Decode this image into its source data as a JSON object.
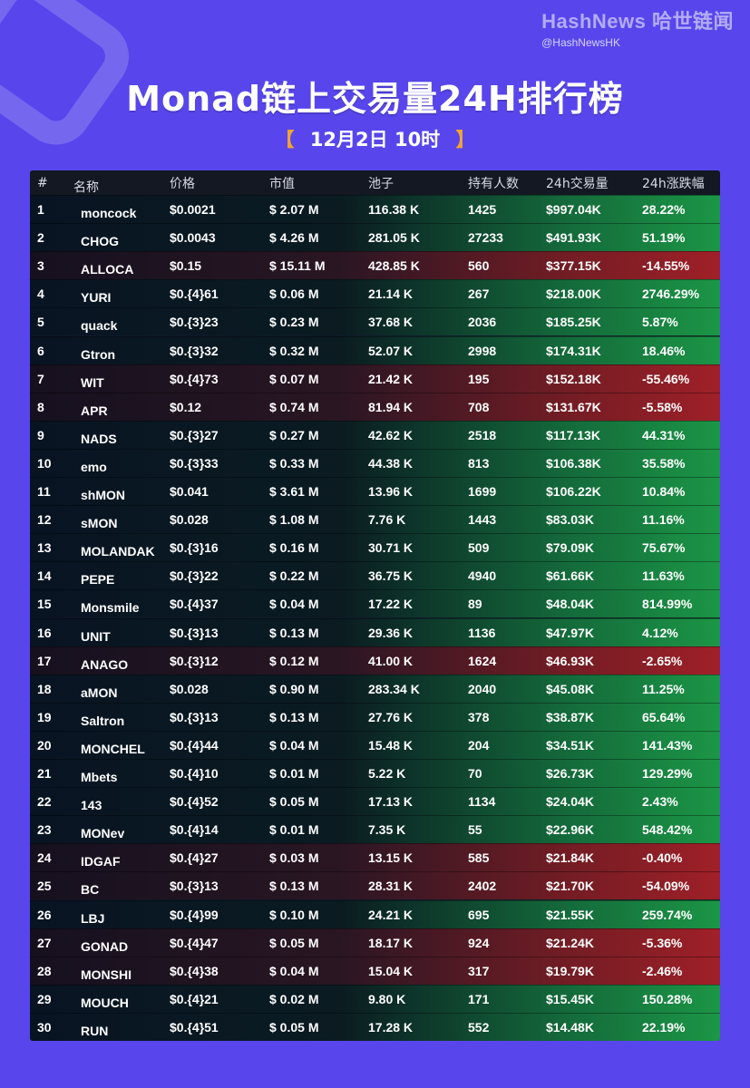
{
  "brand": {
    "name": "HashNews 哈世链闻",
    "handle": "@HashNewsHK"
  },
  "title": "Monad链上交易量24H排行榜",
  "subtitle": {
    "open": "【",
    "text": "12月2日  10时",
    "close": "】"
  },
  "colors": {
    "background": "#5846ec",
    "up_row": "#1c9646",
    "down_row": "#a02028",
    "title_bracket": "#f2a531"
  },
  "table": {
    "headers": {
      "rank": "#",
      "name": "名称",
      "price": "价格",
      "mcap": "市值",
      "pool": "池子",
      "holders": "持有人数",
      "volume": "24h交易量",
      "change": "24h涨跌幅"
    },
    "rows": [
      {
        "rank": "1",
        "name": "moncock",
        "price": "$0.0021",
        "mcap": "$ 2.07 M",
        "pool": "116.38 K",
        "holders": "1425",
        "volume": "$997.04K",
        "change": "28.22%",
        "trend": "up"
      },
      {
        "rank": "2",
        "name": "CHOG",
        "price": "$0.0043",
        "mcap": "$ 4.26 M",
        "pool": "281.05 K",
        "holders": "27233",
        "volume": "$491.93K",
        "change": "51.19%",
        "trend": "up"
      },
      {
        "rank": "3",
        "name": "ALLOCA",
        "price": "$0.15",
        "mcap": "$ 15.11 M",
        "pool": "428.85 K",
        "holders": "560",
        "volume": "$377.15K",
        "change": "-14.55%",
        "trend": "down"
      },
      {
        "rank": "4",
        "name": "YURI",
        "price": "$0.{4}61",
        "mcap": "$ 0.06 M",
        "pool": "21.14 K",
        "holders": "267",
        "volume": "$218.00K",
        "change": "2746.29%",
        "trend": "up"
      },
      {
        "rank": "5",
        "name": "quack",
        "price": "$0.{3}23",
        "mcap": "$ 0.23 M",
        "pool": "37.68 K",
        "holders": "2036",
        "volume": "$185.25K",
        "change": "5.87%",
        "trend": "up"
      },
      {
        "rank": "6",
        "name": "Gtron",
        "price": "$0.{3}32",
        "mcap": "$ 0.32 M",
        "pool": "52.07 K",
        "holders": "2998",
        "volume": "$174.31K",
        "change": "18.46%",
        "trend": "up"
      },
      {
        "rank": "7",
        "name": "WIT",
        "price": "$0.{4}73",
        "mcap": "$ 0.07 M",
        "pool": "21.42 K",
        "holders": "195",
        "volume": "$152.18K",
        "change": "-55.46%",
        "trend": "down"
      },
      {
        "rank": "8",
        "name": "APR",
        "price": "$0.12",
        "mcap": "$ 0.74 M",
        "pool": "81.94 K",
        "holders": "708",
        "volume": "$131.67K",
        "change": "-5.58%",
        "trend": "down"
      },
      {
        "rank": "9",
        "name": "NADS",
        "price": "$0.{3}27",
        "mcap": "$ 0.27 M",
        "pool": "42.62 K",
        "holders": "2518",
        "volume": "$117.13K",
        "change": "44.31%",
        "trend": "up"
      },
      {
        "rank": "10",
        "name": "emo",
        "price": "$0.{3}33",
        "mcap": "$ 0.33 M",
        "pool": "44.38 K",
        "holders": "813",
        "volume": "$106.38K",
        "change": "35.58%",
        "trend": "up"
      },
      {
        "rank": "11",
        "name": "shMON",
        "price": "$0.041",
        "mcap": "$ 3.61 M",
        "pool": "13.96 K",
        "holders": "1699",
        "volume": "$106.22K",
        "change": "10.84%",
        "trend": "up"
      },
      {
        "rank": "12",
        "name": "sMON",
        "price": "$0.028",
        "mcap": "$ 1.08 M",
        "pool": "7.76 K",
        "holders": "1443",
        "volume": "$83.03K",
        "change": "11.16%",
        "trend": "up"
      },
      {
        "rank": "13",
        "name": "MOLANDAK",
        "price": "$0.{3}16",
        "mcap": "$ 0.16 M",
        "pool": "30.71 K",
        "holders": "509",
        "volume": "$79.09K",
        "change": "75.67%",
        "trend": "up"
      },
      {
        "rank": "14",
        "name": "PEPE",
        "price": "$0.{3}22",
        "mcap": "$ 0.22 M",
        "pool": "36.75 K",
        "holders": "4940",
        "volume": "$61.66K",
        "change": "11.63%",
        "trend": "up"
      },
      {
        "rank": "15",
        "name": "Monsmile",
        "price": "$0.{4}37",
        "mcap": "$ 0.04 M",
        "pool": "17.22 K",
        "holders": "89",
        "volume": "$48.04K",
        "change": "814.99%",
        "trend": "up"
      },
      {
        "rank": "16",
        "name": "UNIT",
        "price": "$0.{3}13",
        "mcap": "$ 0.13 M",
        "pool": "29.36 K",
        "holders": "1136",
        "volume": "$47.97K",
        "change": "4.12%",
        "trend": "up"
      },
      {
        "rank": "17",
        "name": "ANAGO",
        "price": "$0.{3}12",
        "mcap": "$ 0.12 M",
        "pool": "41.00 K",
        "holders": "1624",
        "volume": "$46.93K",
        "change": "-2.65%",
        "trend": "down"
      },
      {
        "rank": "18",
        "name": "aMON",
        "price": "$0.028",
        "mcap": "$ 0.90 M",
        "pool": "283.34 K",
        "holders": "2040",
        "volume": "$45.08K",
        "change": "11.25%",
        "trend": "up"
      },
      {
        "rank": "19",
        "name": "Saltron",
        "price": "$0.{3}13",
        "mcap": "$ 0.13 M",
        "pool": "27.76 K",
        "holders": "378",
        "volume": "$38.87K",
        "change": "65.64%",
        "trend": "up"
      },
      {
        "rank": "20",
        "name": "MONCHEL",
        "price": "$0.{4}44",
        "mcap": "$ 0.04 M",
        "pool": "15.48 K",
        "holders": "204",
        "volume": "$34.51K",
        "change": "141.43%",
        "trend": "up"
      },
      {
        "rank": "21",
        "name": "Mbets",
        "price": "$0.{4}10",
        "mcap": "$ 0.01 M",
        "pool": "5.22 K",
        "holders": "70",
        "volume": "$26.73K",
        "change": "129.29%",
        "trend": "up"
      },
      {
        "rank": "22",
        "name": "143",
        "price": "$0.{4}52",
        "mcap": "$ 0.05 M",
        "pool": "17.13 K",
        "holders": "1134",
        "volume": "$24.04K",
        "change": "2.43%",
        "trend": "up"
      },
      {
        "rank": "23",
        "name": "MONev",
        "price": "$0.{4}14",
        "mcap": "$ 0.01 M",
        "pool": "7.35 K",
        "holders": "55",
        "volume": "$22.96K",
        "change": "548.42%",
        "trend": "up"
      },
      {
        "rank": "24",
        "name": "IDGAF",
        "price": "$0.{4}27",
        "mcap": "$ 0.03 M",
        "pool": "13.15 K",
        "holders": "585",
        "volume": "$21.84K",
        "change": "-0.40%",
        "trend": "down"
      },
      {
        "rank": "25",
        "name": "BC",
        "price": "$0.{3}13",
        "mcap": "$ 0.13 M",
        "pool": "28.31 K",
        "holders": "2402",
        "volume": "$21.70K",
        "change": "-54.09%",
        "trend": "down"
      },
      {
        "rank": "26",
        "name": "LBJ",
        "price": "$0.{4}99",
        "mcap": "$ 0.10 M",
        "pool": "24.21 K",
        "holders": "695",
        "volume": "$21.55K",
        "change": "259.74%",
        "trend": "up"
      },
      {
        "rank": "27",
        "name": "GONAD",
        "price": "$0.{4}47",
        "mcap": "$ 0.05 M",
        "pool": "18.17 K",
        "holders": "924",
        "volume": "$21.24K",
        "change": "-5.36%",
        "trend": "down"
      },
      {
        "rank": "28",
        "name": "MONSHI",
        "price": "$0.{4}38",
        "mcap": "$ 0.04 M",
        "pool": "15.04 K",
        "holders": "317",
        "volume": "$19.79K",
        "change": "-2.46%",
        "trend": "down"
      },
      {
        "rank": "29",
        "name": "MOUCH",
        "price": "$0.{4}21",
        "mcap": "$ 0.02 M",
        "pool": "9.80 K",
        "holders": "171",
        "volume": "$15.45K",
        "change": "150.28%",
        "trend": "up"
      },
      {
        "rank": "30",
        "name": "RUN",
        "price": "$0.{4}51",
        "mcap": "$ 0.05 M",
        "pool": "17.28 K",
        "holders": "552",
        "volume": "$14.48K",
        "change": "22.19%",
        "trend": "up"
      }
    ]
  }
}
